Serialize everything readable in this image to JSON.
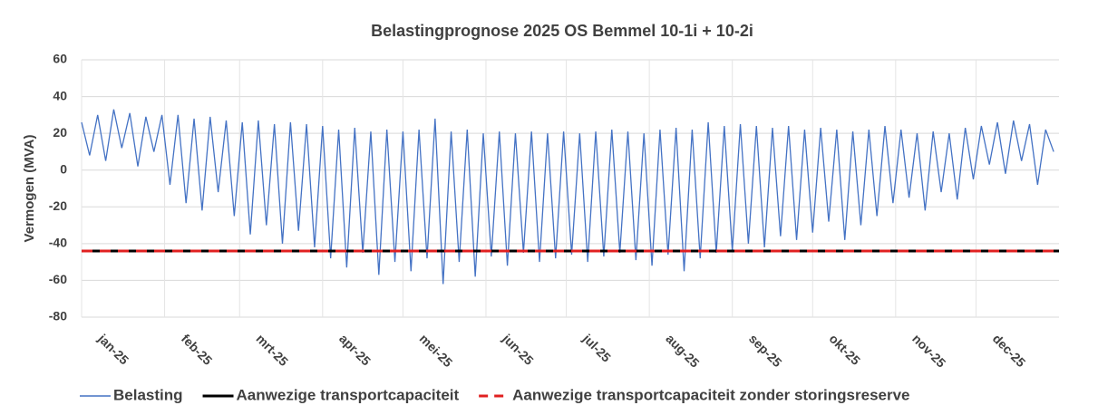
{
  "chart_data": {
    "type": "line",
    "title": "Belastingprognose 2025 OS Bemmel 10-1i + 10-2i",
    "y_label": "Vermogen (MVA)",
    "x": [
      0,
      3,
      6,
      9,
      12,
      15,
      18,
      21,
      24,
      27,
      30,
      33,
      36,
      39,
      42,
      45,
      48,
      51,
      54,
      57,
      60,
      63,
      66,
      69,
      72,
      75,
      78,
      81,
      84,
      87,
      90,
      93,
      96,
      99,
      102,
      105,
      108,
      111,
      114,
      117,
      120,
      123,
      126,
      129,
      132,
      135,
      138,
      141,
      144,
      147,
      150,
      153,
      156,
      159,
      162,
      165,
      168,
      171,
      174,
      177,
      180,
      183,
      186,
      189,
      192,
      195,
      198,
      201,
      204,
      207,
      210,
      213,
      216,
      219,
      222,
      225,
      228,
      231,
      234,
      237,
      240,
      243,
      246,
      249,
      252,
      255,
      258,
      261,
      264,
      267,
      270,
      273,
      276,
      279,
      282,
      285,
      288,
      291,
      294,
      297,
      300,
      303,
      306,
      309,
      312,
      315,
      318,
      321,
      324,
      327,
      330,
      333,
      336,
      339,
      342,
      345,
      348,
      351,
      354,
      357,
      360,
      363
    ],
    "series": [
      {
        "name": "Belasting",
        "color": "#4472c4",
        "values": [
          26,
          8,
          30,
          5,
          33,
          12,
          31,
          2,
          29,
          10,
          30,
          -8,
          30,
          -18,
          28,
          -22,
          29,
          -12,
          27,
          -25,
          26,
          -35,
          27,
          -30,
          25,
          -40,
          26,
          -33,
          25,
          -42,
          24,
          -48,
          22,
          -53,
          23,
          -45,
          21,
          -57,
          22,
          -50,
          21,
          -55,
          22,
          -48,
          28,
          -62,
          21,
          -50,
          22,
          -58,
          20,
          -47,
          21,
          -52,
          20,
          -45,
          21,
          -50,
          20,
          -48,
          21,
          -46,
          20,
          -50,
          21,
          -47,
          22,
          -45,
          21,
          -49,
          20,
          -52,
          22,
          -46,
          23,
          -55,
          22,
          -48,
          26,
          -45,
          24,
          -44,
          25,
          -40,
          24,
          -42,
          23,
          -36,
          24,
          -38,
          22,
          -34,
          23,
          -28,
          22,
          -38,
          21,
          -30,
          22,
          -25,
          24,
          -18,
          22,
          -15,
          20,
          -22,
          21,
          -12,
          20,
          -16,
          23,
          -5,
          24,
          3,
          26,
          -2,
          27,
          5,
          25,
          -8,
          22,
          10
        ]
      }
    ],
    "reference_lines": [
      {
        "name": "Aanwezige transportcapaciteit",
        "color": "#000000",
        "value": -44,
        "dashed": false
      },
      {
        "name": "Aanwezige transportcapaciteit zonder storingsreserve",
        "color": "#e02020",
        "value": -44,
        "dashed": true
      }
    ],
    "xlim": [
      0,
      365
    ],
    "xticks": [
      {
        "value": 0,
        "label": "jan-25"
      },
      {
        "value": 31,
        "label": "feb-25"
      },
      {
        "value": 59,
        "label": "mrt-25"
      },
      {
        "value": 90,
        "label": "apr-25"
      },
      {
        "value": 120,
        "label": "mei-25"
      },
      {
        "value": 151,
        "label": "jun-25"
      },
      {
        "value": 181,
        "label": "jul-25"
      },
      {
        "value": 212,
        "label": "aug-25"
      },
      {
        "value": 243,
        "label": "sep-25"
      },
      {
        "value": 273,
        "label": "okt-25"
      },
      {
        "value": 304,
        "label": "nov-25"
      },
      {
        "value": 334,
        "label": "dec-25"
      }
    ],
    "ylim": [
      -80,
      60
    ],
    "yticks": [
      -80,
      -60,
      -40,
      -20,
      0,
      20,
      40,
      60
    ],
    "grid": true,
    "legend": "bottom"
  }
}
